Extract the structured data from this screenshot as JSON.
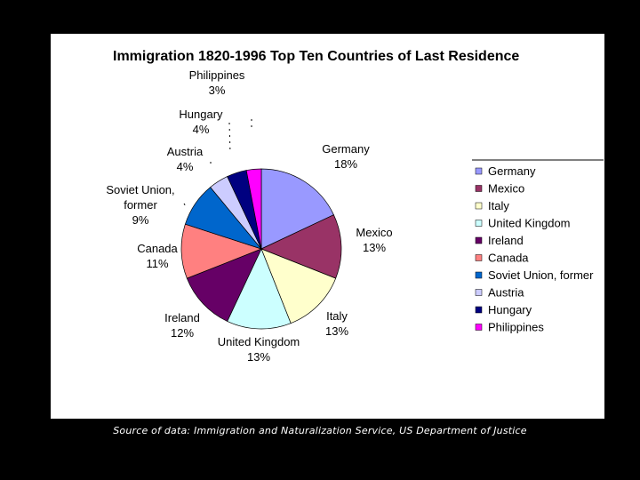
{
  "chart_data": {
    "type": "pie",
    "title": "Immigration 1820-1996 Top Ten Countries of Last Residence",
    "categories": [
      "Germany",
      "Mexico",
      "Italy",
      "United Kingdom",
      "Ireland",
      "Canada",
      "Soviet Union, former",
      "Austria",
      "Hungary",
      "Philippines"
    ],
    "values": [
      18,
      13,
      13,
      13,
      12,
      11,
      9,
      4,
      4,
      3
    ],
    "slice_labels": [
      [
        "Germany",
        "18%"
      ],
      [
        "Mexico",
        "13%"
      ],
      [
        "Italy",
        "13%"
      ],
      [
        "United Kingdom",
        "13%"
      ],
      [
        "Ireland",
        "12%"
      ],
      [
        "Canada",
        "11%"
      ],
      [
        "Soviet Union,",
        "former",
        "9%"
      ],
      [
        "Austria",
        "4%"
      ],
      [
        "Hungary",
        "4%"
      ],
      [
        "Philippines",
        "3%"
      ]
    ],
    "colors": [
      "#9999ff",
      "#993366",
      "#ffffcc",
      "#ccffff",
      "#660066",
      "#ff8080",
      "#0066cc",
      "#ccccff",
      "#000080",
      "#ff00ff"
    ],
    "legend_position": "right"
  },
  "source_note": "Source of data:  Immigration and Naturalization Service, US Department of Justice"
}
